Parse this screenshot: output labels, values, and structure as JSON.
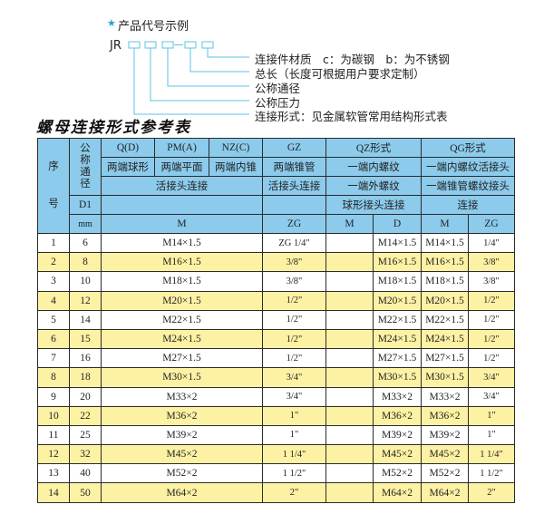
{
  "example": {
    "title": "产品代号示例",
    "code": "JR",
    "labels": [
      "连接件材质　c：为碳钢　b：为不锈钢",
      "总长（长度可根据用户要求定制）",
      "公称通径",
      "公称压力",
      "连接形式：见金属软管常用结构形式表"
    ],
    "accent_color": "#5bc3e6"
  },
  "heading": "螺母连接形式参考表",
  "table": {
    "header": {
      "seq_top": "序",
      "seq_bottom": "号",
      "nominal": "公称通径",
      "r1": [
        "Q(D)",
        "PM(A)",
        "NZ(C)",
        "GZ",
        "QZ形式",
        "QG形式"
      ],
      "r2": [
        "两端球形",
        "两端平面",
        "两端内锥",
        "两端锥管",
        "一端内螺纹",
        "一端内螺纹活接头"
      ],
      "r3": [
        "活接头连接",
        "活接头连接",
        "一端外螺纹",
        "一端锥管螺纹接头"
      ],
      "r4": [
        "D1",
        "",
        "",
        "球形接头连接",
        "连接"
      ],
      "r5": [
        "mm",
        "M",
        "ZG",
        "M",
        "D",
        "M",
        "ZG"
      ]
    },
    "rows": [
      {
        "no": "1",
        "d1": "6",
        "m": "M14×1.5",
        "zg": "ZG 1/4\"",
        "qz_m": "",
        "qz_d": "M14×1.5",
        "qg_m": "M14×1.5",
        "qg_zg": "1/4\""
      },
      {
        "no": "2",
        "d1": "8",
        "m": "M16×1.5",
        "zg": "3/8\"",
        "qz_m": "",
        "qz_d": "M16×1.5",
        "qg_m": "M16×1.5",
        "qg_zg": "3/8\""
      },
      {
        "no": "3",
        "d1": "10",
        "m": "M18×1.5",
        "zg": "3/8\"",
        "qz_m": "",
        "qz_d": "M18×1.5",
        "qg_m": "M18×1.5",
        "qg_zg": "3/8\""
      },
      {
        "no": "4",
        "d1": "12",
        "m": "M20×1.5",
        "zg": "1/2\"",
        "qz_m": "",
        "qz_d": "M20×1.5",
        "qg_m": "M20×1.5",
        "qg_zg": "1/2\""
      },
      {
        "no": "5",
        "d1": "14",
        "m": "M22×1.5",
        "zg": "1/2\"",
        "qz_m": "",
        "qz_d": "M22×1.5",
        "qg_m": "M22×1.5",
        "qg_zg": "1/2\""
      },
      {
        "no": "6",
        "d1": "15",
        "m": "M24×1.5",
        "zg": "1/2\"",
        "qz_m": "",
        "qz_d": "M24×1.5",
        "qg_m": "M24×1.5",
        "qg_zg": "1/2\""
      },
      {
        "no": "7",
        "d1": "16",
        "m": "M27×1.5",
        "zg": "1/2\"",
        "qz_m": "",
        "qz_d": "M27×1.5",
        "qg_m": "M27×1.5",
        "qg_zg": "1/2\""
      },
      {
        "no": "8",
        "d1": "18",
        "m": "M30×1.5",
        "zg": "3/4\"",
        "qz_m": "",
        "qz_d": "M30×1.5",
        "qg_m": "M30×1.5",
        "qg_zg": "3/4\""
      },
      {
        "no": "9",
        "d1": "20",
        "m": "M33×2",
        "zg": "3/4\"",
        "qz_m": "",
        "qz_d": "M33×2",
        "qg_m": "M33×2",
        "qg_zg": "3/4\""
      },
      {
        "no": "10",
        "d1": "22",
        "m": "M36×2",
        "zg": "1\"",
        "qz_m": "",
        "qz_d": "M36×2",
        "qg_m": "M36×2",
        "qg_zg": "1\""
      },
      {
        "no": "11",
        "d1": "25",
        "m": "M39×2",
        "zg": "1\"",
        "qz_m": "",
        "qz_d": "M39×2",
        "qg_m": "M39×2",
        "qg_zg": "1\""
      },
      {
        "no": "12",
        "d1": "32",
        "m": "M45×2",
        "zg": "1 1/4\"",
        "qz_m": "",
        "qz_d": "M45×2",
        "qg_m": "M45×2",
        "qg_zg": "1 1/4\""
      },
      {
        "no": "13",
        "d1": "40",
        "m": "M52×2",
        "zg": "1 1/2\"",
        "qz_m": "",
        "qz_d": "M52×2",
        "qg_m": "M52×2",
        "qg_zg": "1 1/2\""
      },
      {
        "no": "14",
        "d1": "50",
        "m": "M64×2",
        "zg": "2\"",
        "qz_m": "",
        "qz_d": "M64×2",
        "qg_m": "M64×2",
        "qg_zg": "2\""
      }
    ],
    "header_color": "#8ccbec",
    "stripe_color": "#fdf2a4"
  }
}
